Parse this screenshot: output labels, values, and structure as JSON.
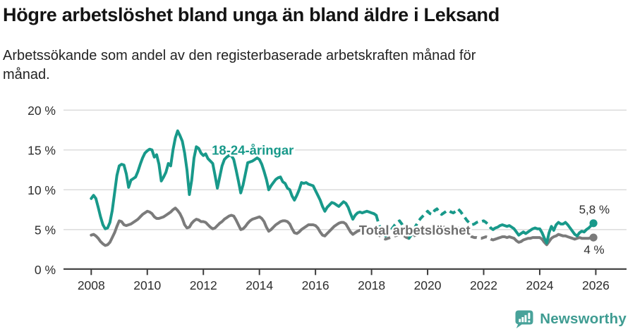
{
  "header": {
    "title": "Högre arbetslöshet bland unga än bland äldre i Leksand",
    "subtitle": "Arbetssökande som andel av den registerbaserade arbetskraften månad för månad."
  },
  "footer": {
    "brand": "Newsworthy"
  },
  "colors": {
    "accent_teal": "#18998a",
    "line_gray": "#7b7b7b",
    "label_gray": "#6e6e6e",
    "grid": "#d9d9d9",
    "axis": "#3c3c3c",
    "tick_text": "#2d2d2d",
    "brand_teal": "#3f9c92",
    "background": "#ffffff"
  },
  "chart_data": {
    "type": "line",
    "title": "Högre arbetslöshet bland unga än bland äldre i Leksand",
    "subtitle": "Arbetssökande som andel av den registerbaserade arbetskraften månad för månad.",
    "unit": "%",
    "frequency": "monthly",
    "x_start": "2008-01",
    "x_end": "2025-12",
    "xlim": [
      2008,
      2026.2
    ],
    "ylim": [
      0,
      20
    ],
    "grid": "horizontal",
    "x_ticks": [
      2008,
      2010,
      2012,
      2014,
      2016,
      2018,
      2020,
      2022,
      2024,
      2026
    ],
    "y_ticks": [
      {
        "value": 0,
        "label": "0 %"
      },
      {
        "value": 5,
        "label": "5 %"
      },
      {
        "value": 10,
        "label": "10 %"
      },
      {
        "value": 15,
        "label": "15 %"
      },
      {
        "value": 20,
        "label": "20 %"
      }
    ],
    "dashed_from_index": 122,
    "dashed_to_index": 173,
    "series": [
      {
        "name": "Total arbetslöshet",
        "color": "#7b7b7b",
        "end_value_label": "4 %",
        "values": [
          4.3,
          4.4,
          4.2,
          3.9,
          3.5,
          3.2,
          3.0,
          3.1,
          3.4,
          4.0,
          4.6,
          5.4,
          6.1,
          6.0,
          5.6,
          5.5,
          5.6,
          5.7,
          5.9,
          6.1,
          6.3,
          6.6,
          6.9,
          7.1,
          7.3,
          7.2,
          7.0,
          6.6,
          6.4,
          6.4,
          6.5,
          6.6,
          6.8,
          7.0,
          7.2,
          7.5,
          7.7,
          7.4,
          7.0,
          6.4,
          5.6,
          5.2,
          5.3,
          5.8,
          6.1,
          6.3,
          6.2,
          6.0,
          6.0,
          5.9,
          5.6,
          5.3,
          5.1,
          5.2,
          5.5,
          5.8,
          6.0,
          6.3,
          6.5,
          6.7,
          6.8,
          6.7,
          6.2,
          5.6,
          5.0,
          5.1,
          5.4,
          5.8,
          6.1,
          6.3,
          6.4,
          6.5,
          6.6,
          6.4,
          6.0,
          5.3,
          4.8,
          5.0,
          5.3,
          5.6,
          5.8,
          6.0,
          6.1,
          6.1,
          6.0,
          5.7,
          5.1,
          4.6,
          4.5,
          4.7,
          5.0,
          5.2,
          5.4,
          5.6,
          5.6,
          5.6,
          5.5,
          5.2,
          4.7,
          4.3,
          4.2,
          4.5,
          4.8,
          5.1,
          5.4,
          5.6,
          5.8,
          5.9,
          5.9,
          5.7,
          5.2,
          4.7,
          4.4,
          4.6,
          4.8,
          4.9,
          5.0,
          5.0,
          5.1,
          5.1,
          5.0,
          4.9,
          4.7,
          4.4,
          4.1,
          3.9,
          3.8,
          3.9,
          4.0,
          4.1,
          4.2,
          4.3,
          4.4,
          4.4,
          4.2,
          4.0,
          3.9,
          4.0,
          4.2,
          4.3,
          4.4,
          4.5,
          4.6,
          4.7,
          4.8,
          4.9,
          5.0,
          5.3,
          5.5,
          5.4,
          5.3,
          5.3,
          5.2,
          5.1,
          5.0,
          5.0,
          5.1,
          5.2,
          5.1,
          4.9,
          4.6,
          4.4,
          4.2,
          4.1,
          4.0,
          4.0,
          3.9,
          3.9,
          4.0,
          4.1,
          4.0,
          3.8,
          3.7,
          3.8,
          3.9,
          4.0,
          4.1,
          4.1,
          4.0,
          4.1,
          4.0,
          3.9,
          3.6,
          3.4,
          3.5,
          3.7,
          3.8,
          3.9,
          3.9,
          4.0,
          4.0,
          4.0,
          4.0,
          3.8,
          3.4,
          3.1,
          3.5,
          3.9,
          4.1,
          4.2,
          4.4,
          4.3,
          4.2,
          4.2,
          4.1,
          4.0,
          3.9,
          3.8,
          3.9,
          4.0,
          3.9,
          3.9,
          3.9,
          3.9,
          4.0,
          4.0
        ]
      },
      {
        "name": "18-24-åringar",
        "color": "#18998a",
        "end_value_label": "5,8 %",
        "values": [
          8.9,
          9.3,
          8.9,
          7.8,
          6.6,
          5.6,
          5.1,
          5.2,
          5.9,
          7.4,
          9.6,
          11.8,
          13.0,
          13.2,
          13.1,
          12.0,
          10.3,
          11.2,
          11.4,
          11.6,
          12.3,
          13.2,
          14.0,
          14.6,
          14.9,
          15.1,
          15.0,
          14.1,
          14.4,
          13.2,
          11.1,
          11.6,
          12.2,
          13.3,
          13.0,
          15.0,
          16.5,
          17.4,
          16.8,
          16.1,
          14.6,
          12.5,
          9.4,
          11.2,
          14.0,
          15.4,
          15.2,
          14.6,
          14.3,
          14.5,
          13.9,
          13.6,
          13.3,
          11.8,
          10.2,
          11.6,
          13.0,
          13.8,
          14.1,
          14.3,
          14.3,
          13.8,
          12.5,
          11.1,
          9.6,
          10.6,
          12.0,
          13.4,
          13.5,
          13.6,
          13.8,
          14.0,
          13.8,
          13.2,
          12.3,
          11.3,
          10.0,
          10.5,
          10.9,
          11.3,
          11.5,
          11.6,
          11.0,
          10.8,
          10.2,
          10.0,
          9.2,
          8.7,
          9.3,
          10.0,
          10.9,
          10.8,
          10.9,
          10.7,
          10.6,
          10.5,
          9.9,
          9.3,
          8.7,
          7.9,
          7.3,
          7.8,
          8.1,
          8.4,
          8.3,
          8.1,
          7.9,
          8.2,
          8.5,
          8.3,
          7.8,
          7.0,
          6.3,
          6.8,
          7.1,
          7.2,
          7.1,
          7.2,
          7.3,
          7.2,
          7.1,
          7.0,
          6.8,
          5.8,
          5.0,
          4.5,
          4.2,
          4.4,
          4.8,
          5.2,
          5.6,
          5.9,
          6.1,
          5.7,
          5.0,
          4.4,
          3.9,
          4.3,
          4.9,
          5.5,
          6.0,
          6.4,
          6.7,
          7.0,
          7.3,
          7.0,
          6.9,
          7.4,
          7.6,
          7.2,
          6.9,
          7.1,
          7.3,
          7.4,
          7.2,
          7.1,
          7.3,
          7.6,
          7.3,
          6.9,
          6.5,
          6.1,
          5.8,
          5.6,
          5.7,
          5.9,
          6.0,
          6.0,
          6.1,
          5.9,
          5.6,
          5.2,
          5.0,
          5.2,
          5.3,
          5.5,
          5.6,
          5.5,
          5.4,
          5.5,
          5.3,
          5.1,
          4.7,
          4.3,
          4.5,
          4.7,
          4.5,
          4.7,
          4.9,
          5.1,
          5.2,
          5.1,
          5.1,
          4.6,
          3.9,
          3.3,
          4.6,
          5.4,
          4.9,
          5.6,
          5.9,
          5.7,
          5.7,
          5.9,
          5.6,
          5.2,
          4.8,
          4.4,
          4.2,
          4.6,
          4.8,
          4.7,
          5.0,
          5.2,
          5.5,
          5.8
        ]
      }
    ],
    "line_labels": [
      {
        "text": "18-24-åringar",
        "year": 2012.3,
        "value": 14.4,
        "color": "#18998a"
      },
      {
        "text": "Total arbetslöshet",
        "year": 2017.55,
        "value": 4.37,
        "color": "#6e6e6e"
      }
    ],
    "end_value_labels": [
      {
        "text": "5,8 %",
        "year": 2025.4,
        "value": 7.02
      },
      {
        "text": "4 %",
        "year": 2025.57,
        "value": 1.98
      }
    ],
    "legend_position": "inline-labels"
  }
}
